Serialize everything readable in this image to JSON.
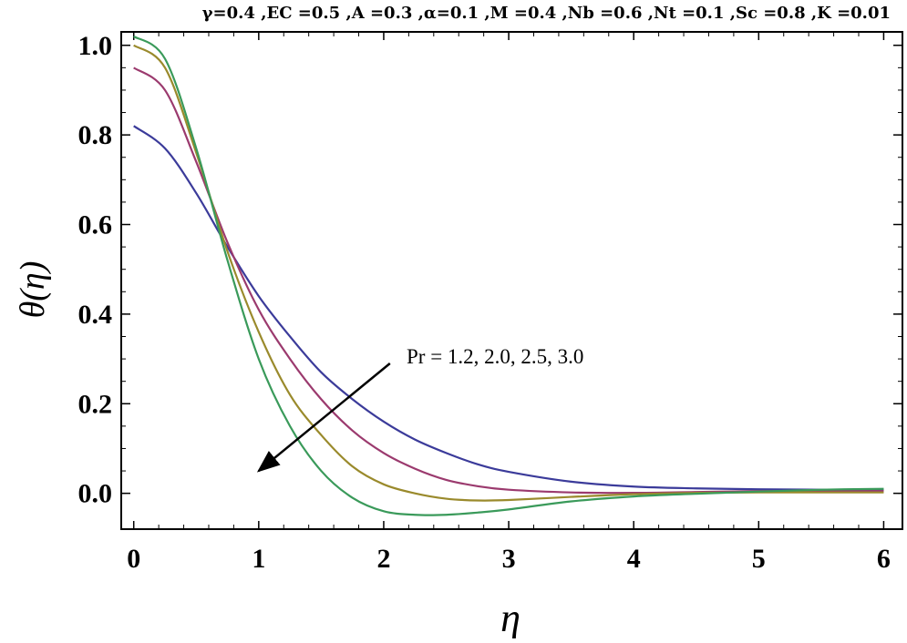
{
  "chart_data": {
    "type": "line",
    "title": "γ=0.4 ,EC =0.5 ,A =0.3 ,α=0.1 ,M =0.4 ,Nb =0.6 ,Nt =0.1 ,Sc =0.8 ,K =0.01",
    "xlabel": "η",
    "ylabel": "θ(η)",
    "xlim": [
      -0.1,
      6.15
    ],
    "ylim": [
      -0.08,
      1.03
    ],
    "x_ticks": [
      "0",
      "1",
      "2",
      "3",
      "4",
      "5",
      "6"
    ],
    "y_ticks": [
      "0.0",
      "0.2",
      "0.4",
      "0.6",
      "0.8",
      "1.0"
    ],
    "grid": false,
    "annotation": {
      "text": "Pr = 1.2, 2.0, 2.5, 3.0",
      "arrow_from": [
        2.05,
        0.29
      ],
      "arrow_to": [
        1.0,
        0.05
      ]
    },
    "x": [
      0,
      0.25,
      0.5,
      0.75,
      1.0,
      1.25,
      1.5,
      1.75,
      2.0,
      2.25,
      2.5,
      2.75,
      3.0,
      3.5,
      4.0,
      4.5,
      5.0,
      5.5,
      6.0
    ],
    "series": [
      {
        "color": "#3b3b9a",
        "values": [
          0.82,
          0.77,
          0.67,
          0.55,
          0.44,
          0.35,
          0.27,
          0.21,
          0.16,
          0.12,
          0.09,
          0.065,
          0.048,
          0.026,
          0.015,
          0.011,
          0.009,
          0.008,
          0.008
        ]
      },
      {
        "color": "#9b3a6e",
        "values": [
          0.95,
          0.9,
          0.74,
          0.56,
          0.41,
          0.3,
          0.21,
          0.14,
          0.09,
          0.055,
          0.03,
          0.016,
          0.008,
          0.002,
          0.001,
          0.003,
          0.005,
          0.005,
          0.005
        ]
      },
      {
        "color": "#9a8a2c",
        "values": [
          1.0,
          0.95,
          0.76,
          0.54,
          0.36,
          0.22,
          0.13,
          0.06,
          0.02,
          0.0,
          -0.012,
          -0.016,
          -0.015,
          -0.008,
          -0.002,
          0.001,
          0.002,
          0.002,
          0.002
        ]
      },
      {
        "color": "#3a9a5a",
        "values": [
          1.02,
          0.97,
          0.77,
          0.52,
          0.3,
          0.15,
          0.05,
          -0.01,
          -0.04,
          -0.048,
          -0.048,
          -0.043,
          -0.036,
          -0.018,
          -0.007,
          -0.001,
          0.004,
          0.008,
          0.01
        ]
      }
    ]
  }
}
